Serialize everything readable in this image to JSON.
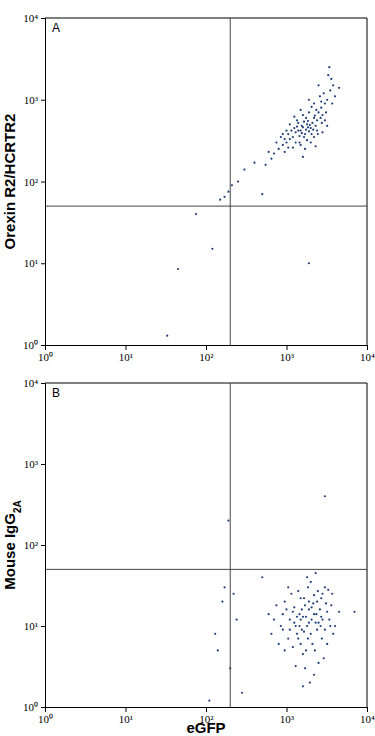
{
  "chart_data": [
    {
      "type": "scatter",
      "annotation": "A",
      "ylabel": "Orexin R2/HCRTR2",
      "log": true,
      "color": "#1f3d7a",
      "marker": "circle",
      "xlim": [
        1,
        10000
      ],
      "ylim": [
        1,
        10000
      ],
      "xticks": [
        {
          "value": 1,
          "label": "10⁰"
        },
        {
          "value": 10,
          "label": "10¹"
        },
        {
          "value": 100,
          "label": "10²"
        },
        {
          "value": 1000,
          "label": "10³"
        },
        {
          "value": 10000,
          "label": "10⁴"
        }
      ],
      "yticks": [
        {
          "value": 1,
          "label": "10⁰"
        },
        {
          "value": 10,
          "label": "10¹"
        },
        {
          "value": 100,
          "label": "10²"
        },
        {
          "value": 1000,
          "label": "10³"
        },
        {
          "value": 10000,
          "label": "10⁴"
        }
      ],
      "gates": {
        "x": 200,
        "y": 50
      },
      "x": [
        1500,
        1800,
        2200,
        1200,
        1000,
        2500,
        3000,
        1700,
        2000,
        1400,
        1600,
        1900,
        2100,
        2400,
        1300,
        1100,
        900,
        2700,
        3200,
        3500,
        2800,
        1750,
        1650,
        2300,
        1450,
        1850,
        2050,
        1550,
        1250,
        950,
        800,
        700,
        3800,
        3300,
        2600,
        2900,
        2200,
        1900,
        1600,
        1350,
        1150,
        1050,
        2000,
        2400,
        2750,
        3100,
        1700,
        1500,
        1200,
        900,
        2500,
        3400,
        3600,
        4000,
        3000,
        2200,
        1800,
        1400,
        1300,
        1000,
        850,
        750,
        650,
        600,
        1100,
        1250,
        1500,
        2050,
        2350,
        2650,
        2450,
        1950,
        1750,
        1550,
        1650,
        1850,
        2150,
        2250,
        1350,
        1450,
        3200,
        4500,
        2800,
        1050,
        950,
        1600,
        2300,
        3700,
        1900,
        2700,
        33,
        45,
        75,
        120,
        150,
        170,
        190,
        210,
        250,
        500,
        1900,
        300,
        400,
        550
      ],
      "values": [
        420,
        500,
        600,
        350,
        300,
        700,
        900,
        380,
        450,
        520,
        460,
        410,
        520,
        560,
        400,
        330,
        280,
        800,
        1000,
        1300,
        650,
        600,
        350,
        480,
        300,
        550,
        380,
        480,
        450,
        330,
        250,
        220,
        1500,
        2000,
        1100,
        1200,
        900,
        700,
        650,
        560,
        420,
        380,
        300,
        420,
        520,
        700,
        250,
        280,
        260,
        380,
        1500,
        2500,
        1800,
        1100,
        560,
        350,
        320,
        420,
        300,
        420,
        350,
        300,
        190,
        230,
        500,
        620,
        750,
        820,
        750,
        600,
        380,
        490,
        430,
        390,
        540,
        460,
        430,
        640,
        470,
        360,
        480,
        1400,
        400,
        260,
        230,
        200,
        270,
        900,
        1000,
        950,
        1.3,
        8.5,
        40,
        15,
        60,
        65,
        75,
        90,
        100,
        70,
        10,
        140,
        170,
        160
      ]
    },
    {
      "type": "scatter",
      "annotation": "B",
      "ylabel": "Mouse IgG",
      "ylabel_sub": "2A",
      "xlabel": "eGFP",
      "log": true,
      "color": "#1f3d7a",
      "marker": "circle",
      "xlim": [
        1,
        10000
      ],
      "ylim": [
        1,
        10000
      ],
      "xticks": [
        {
          "value": 1,
          "label": "10⁰"
        },
        {
          "value": 10,
          "label": "10¹"
        },
        {
          "value": 100,
          "label": "10²"
        },
        {
          "value": 1000,
          "label": "10³"
        },
        {
          "value": 10000,
          "label": "10⁴"
        }
      ],
      "yticks": [
        {
          "value": 1,
          "label": "10⁰"
        },
        {
          "value": 10,
          "label": "10¹"
        },
        {
          "value": 100,
          "label": "10²"
        },
        {
          "value": 1000,
          "label": "10³"
        },
        {
          "value": 10000,
          "label": "10⁴"
        }
      ],
      "gates": {
        "x": 200,
        "y": 50
      },
      "x": [
        1500,
        1800,
        2200,
        2000,
        1200,
        2500,
        3000,
        1700,
        1400,
        2400,
        1600,
        1900,
        2100,
        2700,
        1300,
        1100,
        900,
        3200,
        3500,
        2800,
        1750,
        1650,
        2300,
        1450,
        1850,
        2050,
        1550,
        1250,
        950,
        800,
        700,
        3800,
        3300,
        2600,
        2900,
        2200,
        1900,
        1600,
        1350,
        1150,
        1050,
        2000,
        2400,
        2750,
        3100,
        1700,
        1500,
        1200,
        900,
        2500,
        3400,
        3600,
        4000,
        3000,
        2200,
        1800,
        1400,
        1300,
        1000,
        850,
        750,
        650,
        600,
        1100,
        1250,
        1500,
        2050,
        2350,
        2650,
        2450,
        1950,
        1750,
        1550,
        1650,
        1850,
        2150,
        2250,
        1350,
        1450,
        3200,
        4500,
        2800,
        1050,
        950,
        1600,
        2300,
        3700,
        1900,
        2700,
        7000,
        190,
        170,
        160,
        200,
        140,
        110,
        130,
        3000,
        240,
        220,
        500,
        280
      ],
      "values": [
        12,
        10,
        14,
        8,
        15,
        11,
        9,
        18,
        7,
        20,
        13,
        16,
        6,
        13,
        10,
        12,
        9,
        15,
        10,
        25,
        5,
        22,
        11,
        14,
        30,
        12,
        9,
        17,
        20,
        6,
        12,
        8,
        28,
        16,
        4,
        24,
        11,
        4.5,
        8,
        25,
        7,
        35,
        9,
        7,
        19,
        3,
        22,
        5.5,
        14,
        3.5,
        12,
        18,
        10,
        30,
        2.5,
        40,
        27,
        3.2,
        16,
        10,
        18,
        8,
        14,
        9,
        11,
        6,
        17,
        14,
        10,
        27,
        2,
        13,
        16,
        8.5,
        7,
        19,
        5,
        13,
        10,
        6,
        15,
        12,
        30,
        5,
        1.8,
        45,
        25,
        20,
        22,
        15,
        200,
        30,
        20,
        3,
        5,
        1.2,
        8,
        400,
        12,
        25,
        40,
        1.5
      ]
    }
  ]
}
